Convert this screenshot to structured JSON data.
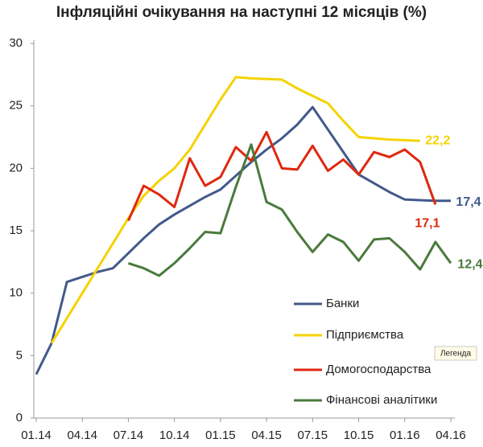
{
  "chart_data": {
    "type": "line",
    "title": "Інфляційні очікування на наступні 12 місяців (%)",
    "categories": [
      "01.14",
      null,
      null,
      "04.14",
      null,
      null,
      "07.14",
      null,
      null,
      "10.14",
      null,
      null,
      "01.15",
      null,
      null,
      "04.15",
      null,
      null,
      "07.15",
      null,
      null,
      "10.15",
      null,
      null,
      "01.16",
      null,
      null,
      "04.16"
    ],
    "ylim": [
      0,
      30
    ],
    "yticks": [
      0,
      5,
      10,
      15,
      20,
      25,
      30
    ],
    "grid": false,
    "legend": "bottom-right",
    "tooltip": "Легенда",
    "series": [
      {
        "name": "Банки",
        "color": "#42598a",
        "values": [
          3.5,
          6.0,
          10.9,
          11.3,
          11.7,
          12.0,
          13.2,
          14.4,
          15.5,
          16.3,
          17.0,
          17.7,
          18.3,
          19.4,
          20.5,
          21.5,
          22.4,
          23.5,
          24.9,
          23.1,
          21.3,
          19.5,
          18.8,
          18.1,
          17.5,
          17.45,
          17.4,
          17.4
        ],
        "value_labels": [
          null,
          null,
          null,
          null,
          null,
          null,
          null,
          null,
          null,
          null,
          null,
          null,
          null,
          null,
          null,
          null,
          null,
          null,
          null,
          null,
          null,
          null,
          null,
          null,
          null,
          null,
          null,
          "17,4"
        ]
      },
      {
        "name": "Підприємства",
        "color": "#f5d200",
        "values": [
          null,
          6.0,
          8.0,
          10.0,
          12.0,
          14.0,
          16.0,
          17.8,
          19.0,
          20.0,
          21.5,
          23.5,
          25.5,
          27.3,
          27.2,
          27.15,
          27.1,
          26.4,
          25.8,
          25.2,
          23.8,
          22.5,
          22.4,
          22.3,
          22.25,
          22.2,
          null,
          null
        ],
        "value_labels": [
          null,
          null,
          null,
          null,
          null,
          null,
          null,
          null,
          null,
          null,
          null,
          null,
          null,
          null,
          null,
          null,
          null,
          null,
          null,
          null,
          null,
          null,
          null,
          null,
          null,
          "22,2",
          null,
          null
        ]
      },
      {
        "name": "Домогосподарства",
        "color": "#e0280f",
        "values": [
          null,
          null,
          null,
          null,
          null,
          null,
          15.8,
          18.6,
          17.9,
          16.9,
          20.8,
          18.6,
          19.3,
          21.7,
          20.6,
          22.9,
          20.0,
          19.9,
          21.8,
          19.8,
          20.7,
          19.5,
          21.3,
          20.9,
          21.5,
          20.5,
          17.1,
          null
        ],
        "value_labels": [
          null,
          null,
          null,
          null,
          null,
          null,
          null,
          null,
          null,
          null,
          null,
          null,
          null,
          null,
          null,
          null,
          null,
          null,
          null,
          null,
          null,
          null,
          null,
          null,
          null,
          null,
          "17,1",
          null
        ]
      },
      {
        "name": "Фінансові аналітики",
        "color": "#4a7a3c",
        "values": [
          null,
          null,
          null,
          null,
          null,
          null,
          12.4,
          12.0,
          11.4,
          12.4,
          13.6,
          14.9,
          14.8,
          18.5,
          21.9,
          17.3,
          16.7,
          14.9,
          13.3,
          14.7,
          14.1,
          12.6,
          14.3,
          14.4,
          13.3,
          11.9,
          14.1,
          12.4
        ],
        "value_labels": [
          null,
          null,
          null,
          null,
          null,
          null,
          null,
          null,
          null,
          null,
          null,
          null,
          null,
          null,
          null,
          null,
          null,
          null,
          null,
          null,
          null,
          null,
          null,
          null,
          null,
          null,
          null,
          "12,4"
        ]
      }
    ]
  }
}
